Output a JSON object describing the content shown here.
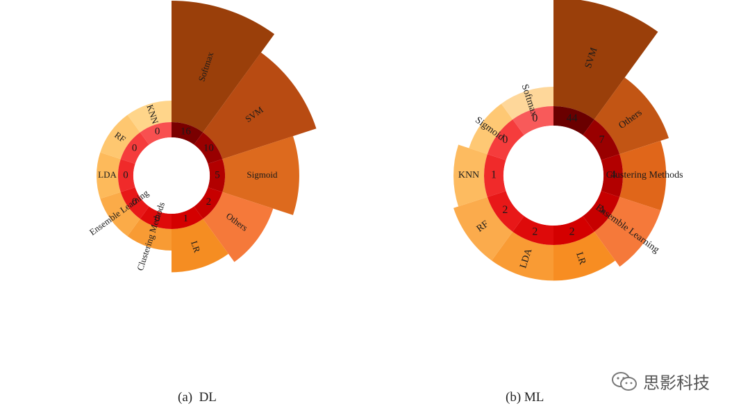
{
  "chart_data": [
    {
      "type": "pie",
      "variant": "nightingale-rose",
      "caption": "(a)  DL",
      "categories": [
        "Softmax",
        "SVM",
        "Sigmoid",
        "Others",
        "LR",
        "Clustering Methods",
        "Ensemble Learning",
        "LDA",
        "RF",
        "KNN"
      ],
      "values": [
        16,
        10,
        5,
        2,
        1,
        0,
        0,
        0,
        0,
        0
      ],
      "inner_labels": [
        "16",
        "10",
        "5",
        "2",
        "1",
        "0",
        "0",
        "0",
        "0",
        "0"
      ],
      "colors": [
        "#9a3f0a",
        "#b84b12",
        "#dd6a1e",
        "#f5793a",
        "#f58d22",
        "#f89b34",
        "#fbab48",
        "#fdba5b",
        "#fec770",
        "#ffd58a"
      ],
      "ring_colors": [
        "#7a0000",
        "#990000",
        "#b20000",
        "#c70000",
        "#d40000",
        "#de0a0a",
        "#e81818",
        "#f02a2a",
        "#f53c3c",
        "#f85050"
      ]
    },
    {
      "type": "pie",
      "variant": "nightingale-rose",
      "caption": "(b) ML",
      "categories": [
        "SVM",
        "Others",
        "Clustering Methods",
        "Ensemble Learning",
        "LR",
        "LDA",
        "RF",
        "KNN",
        "Sigmoid",
        "Softmax"
      ],
      "values": [
        44,
        7,
        4,
        4,
        2,
        2,
        2,
        1,
        0,
        0
      ],
      "inner_labels": [
        "44",
        "7",
        "4",
        "4",
        "2",
        "2",
        "2",
        "1",
        "0",
        "0"
      ],
      "colors": [
        "#9a3f0a",
        "#c25514",
        "#e0661a",
        "#f5793a",
        "#f78d22",
        "#f99b34",
        "#fbab4c",
        "#fdbb60",
        "#fec874",
        "#fed79a"
      ],
      "ring_colors": [
        "#6a0000",
        "#990000",
        "#b20000",
        "#c70000",
        "#d40000",
        "#de0a0a",
        "#e81818",
        "#f02a2a",
        "#f53c3c",
        "#f85a5a"
      ]
    }
  ],
  "watermark": {
    "text": "思影科技",
    "icon": "wechat-icon"
  }
}
